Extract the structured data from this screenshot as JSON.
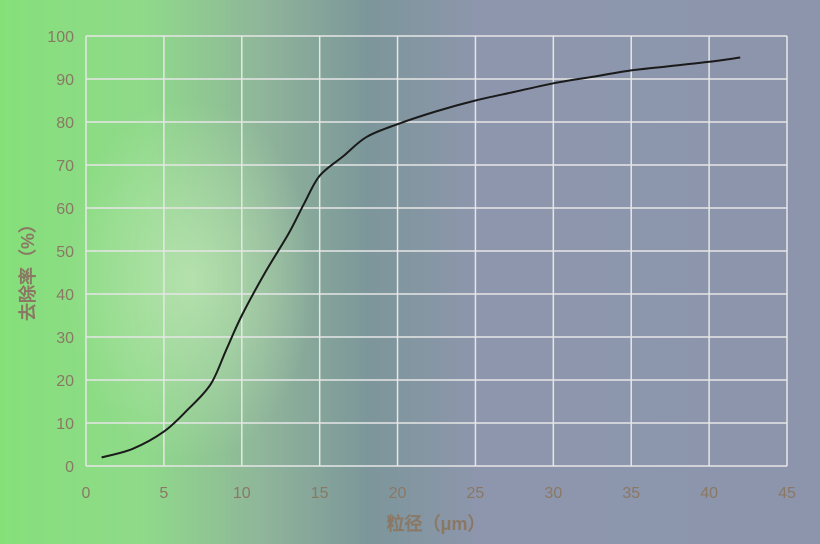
{
  "chart_data": {
    "type": "line",
    "title": "",
    "xlabel": "粒径（μm）",
    "ylabel": "去除率（%）",
    "xlim": [
      0,
      45
    ],
    "ylim": [
      0,
      100
    ],
    "xticks": [
      0,
      5,
      10,
      15,
      20,
      25,
      30,
      35,
      40,
      45
    ],
    "yticks": [
      0,
      10,
      20,
      30,
      40,
      50,
      60,
      70,
      80,
      90,
      100
    ],
    "grid": true,
    "series": [
      {
        "x": [
          1,
          3,
          5,
          6.5,
          8,
          9,
          10,
          11.5,
          13,
          14,
          15,
          16.5,
          18,
          20,
          22.5,
          25,
          27.5,
          30,
          32.5,
          35,
          37.5,
          40,
          42
        ],
        "y": [
          2,
          4,
          8,
          13,
          19,
          27,
          35,
          45,
          54,
          61,
          67.5,
          72,
          76.5,
          79.5,
          82.5,
          85,
          87,
          89,
          90.5,
          92,
          93,
          94,
          95
        ],
        "color": "#1a1a1a"
      }
    ],
    "colors": {
      "grid": "#e6e6e6",
      "labels": "#8a7864",
      "line": "#1a1a1a"
    }
  }
}
